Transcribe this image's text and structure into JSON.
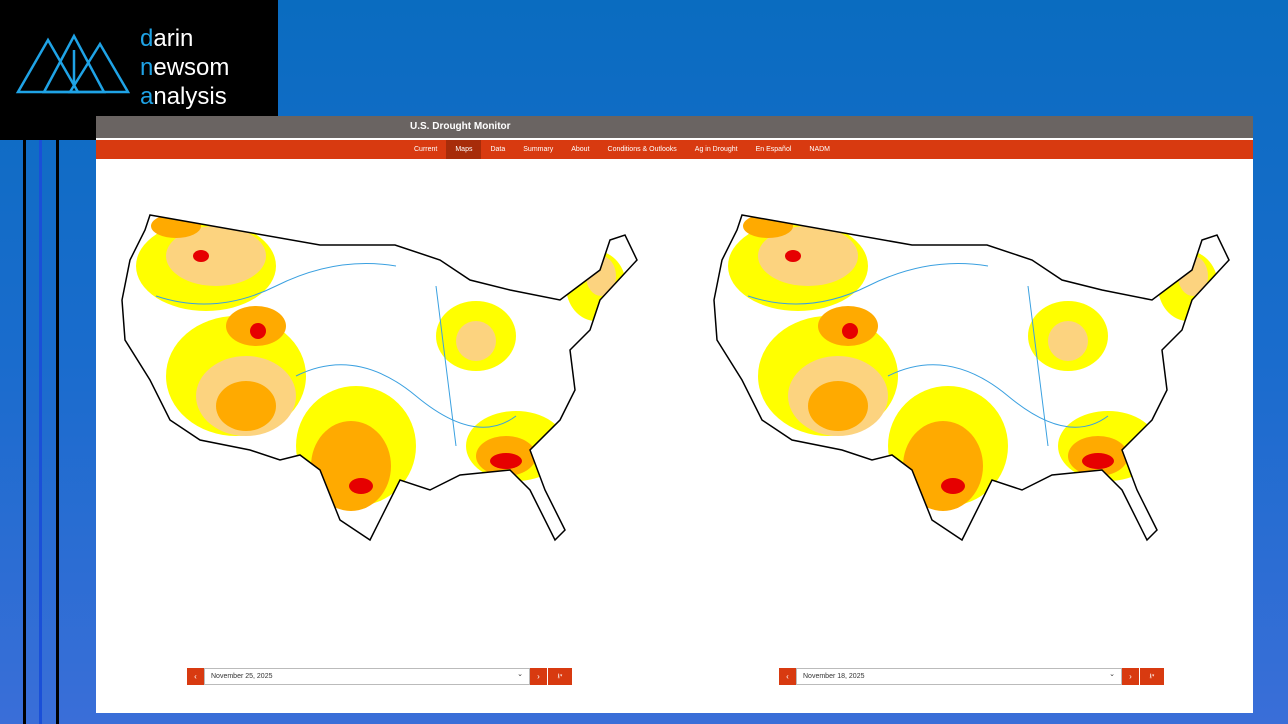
{
  "logo": {
    "lines": [
      "darin",
      "newsom",
      "analysis"
    ]
  },
  "header": {
    "title": "U.S. Drought Monitor"
  },
  "nav": {
    "items": [
      "Current",
      "Maps",
      "Data",
      "Summary",
      "About",
      "Conditions & Outlooks",
      "Ag in Drought",
      "En Español",
      "NADM"
    ],
    "active": "Maps"
  },
  "maps": [
    {
      "date": "November 25, 2025"
    },
    {
      "date": "November 18, 2025"
    }
  ]
}
